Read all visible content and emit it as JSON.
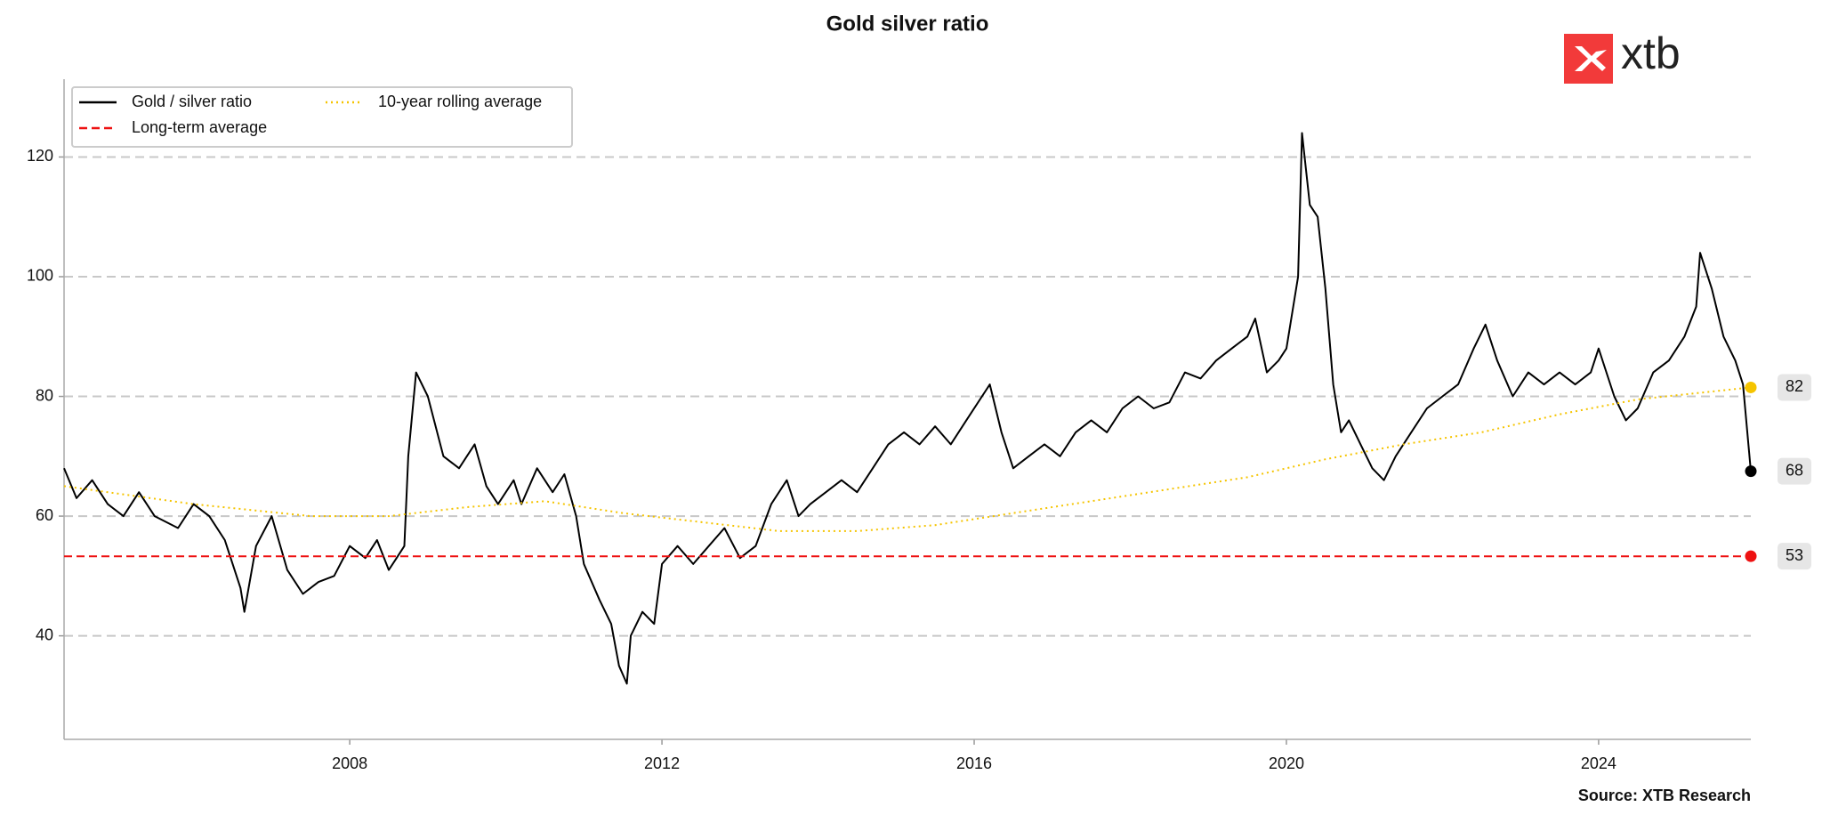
{
  "chart_data": {
    "type": "line",
    "title": "Gold silver ratio",
    "source": "Source: XTB Research",
    "brand": "xtb",
    "xlim": [
      2004.34,
      2025.95
    ],
    "xticks": [
      2008,
      2012,
      2016,
      2020,
      2024
    ],
    "ylim": [
      22.7,
      133
    ],
    "yticks": [
      40,
      60,
      80,
      100,
      120
    ],
    "grid": true,
    "legend": "upper left",
    "series": [
      {
        "name": "Gold / silver ratio",
        "color": "#000000",
        "style": "solid",
        "last_label": "68",
        "x": [
          2004.34,
          2004.5,
          2004.7,
          2004.9,
          2005.1,
          2005.3,
          2005.5,
          2005.8,
          2006.0,
          2006.2,
          2006.4,
          2006.6,
          2006.65,
          2006.8,
          2007.0,
          2007.2,
          2007.4,
          2007.6,
          2007.8,
          2008.0,
          2008.2,
          2008.35,
          2008.5,
          2008.6,
          2008.7,
          2008.75,
          2008.85,
          2009.0,
          2009.2,
          2009.4,
          2009.6,
          2009.75,
          2009.9,
          2010.1,
          2010.2,
          2010.4,
          2010.6,
          2010.75,
          2010.9,
          2011.0,
          2011.2,
          2011.35,
          2011.45,
          2011.55,
          2011.6,
          2011.75,
          2011.9,
          2012.0,
          2012.2,
          2012.4,
          2012.6,
          2012.8,
          2013.0,
          2013.2,
          2013.4,
          2013.6,
          2013.75,
          2013.9,
          2014.1,
          2014.3,
          2014.5,
          2014.7,
          2014.9,
          2015.1,
          2015.3,
          2015.5,
          2015.7,
          2015.9,
          2016.1,
          2016.2,
          2016.35,
          2016.5,
          2016.7,
          2016.9,
          2017.1,
          2017.3,
          2017.5,
          2017.7,
          2017.9,
          2018.1,
          2018.3,
          2018.5,
          2018.7,
          2018.9,
          2019.1,
          2019.3,
          2019.5,
          2019.6,
          2019.75,
          2019.9,
          2020.0,
          2020.15,
          2020.2,
          2020.3,
          2020.4,
          2020.5,
          2020.6,
          2020.7,
          2020.8,
          2020.95,
          2021.1,
          2021.25,
          2021.4,
          2021.6,
          2021.8,
          2022.0,
          2022.2,
          2022.4,
          2022.55,
          2022.7,
          2022.9,
          2023.1,
          2023.3,
          2023.5,
          2023.7,
          2023.9,
          2024.0,
          2024.2,
          2024.35,
          2024.5,
          2024.7,
          2024.9,
          2025.1,
          2025.25,
          2025.3,
          2025.45,
          2025.6,
          2025.75,
          2025.85,
          2025.95
        ],
        "values": [
          68,
          63,
          66,
          62,
          60,
          64,
          60,
          58,
          62,
          60,
          56,
          48,
          44,
          55,
          60,
          51,
          47,
          49,
          50,
          55,
          53,
          56,
          51,
          53,
          55,
          70,
          84,
          80,
          70,
          68,
          72,
          65,
          62,
          66,
          62,
          68,
          64,
          67,
          60,
          52,
          46,
          42,
          35,
          32,
          40,
          44,
          42,
          52,
          55,
          52,
          55,
          58,
          53,
          55,
          62,
          66,
          60,
          62,
          64,
          66,
          64,
          68,
          72,
          74,
          72,
          75,
          72,
          76,
          80,
          82,
          74,
          68,
          70,
          72,
          70,
          74,
          76,
          74,
          78,
          80,
          78,
          79,
          84,
          83,
          86,
          88,
          90,
          93,
          84,
          86,
          88,
          100,
          124,
          112,
          110,
          98,
          82,
          74,
          76,
          72,
          68,
          66,
          70,
          74,
          78,
          80,
          82,
          88,
          92,
          86,
          80,
          84,
          82,
          84,
          82,
          84,
          88,
          80,
          76,
          78,
          84,
          86,
          90,
          95,
          104,
          98,
          90,
          86,
          82,
          67.5
        ]
      },
      {
        "name": "Long-term average",
        "color": "#ee1111",
        "style": "dashed",
        "last_label": "53",
        "x": [
          2004.34,
          2025.95
        ],
        "values": [
          53.3,
          53.3
        ]
      },
      {
        "name": "10-year rolling average",
        "color": "#f5c400",
        "style": "dotted",
        "last_label": "82",
        "x": [
          2004.34,
          2006,
          2007.5,
          2008.5,
          2009.5,
          2010.5,
          2011.5,
          2012.5,
          2013.5,
          2014.5,
          2015.5,
          2016.5,
          2017.5,
          2018.5,
          2019.5,
          2020.5,
          2021.5,
          2022.5,
          2023.5,
          2024.5,
          2025.95
        ],
        "values": [
          65,
          62,
          60,
          60,
          61.5,
          62.5,
          60.5,
          59,
          57.5,
          57.5,
          58.5,
          60.5,
          62.5,
          64.5,
          66.5,
          69.5,
          72,
          74,
          77,
          79.5,
          81.5
        ]
      }
    ]
  }
}
